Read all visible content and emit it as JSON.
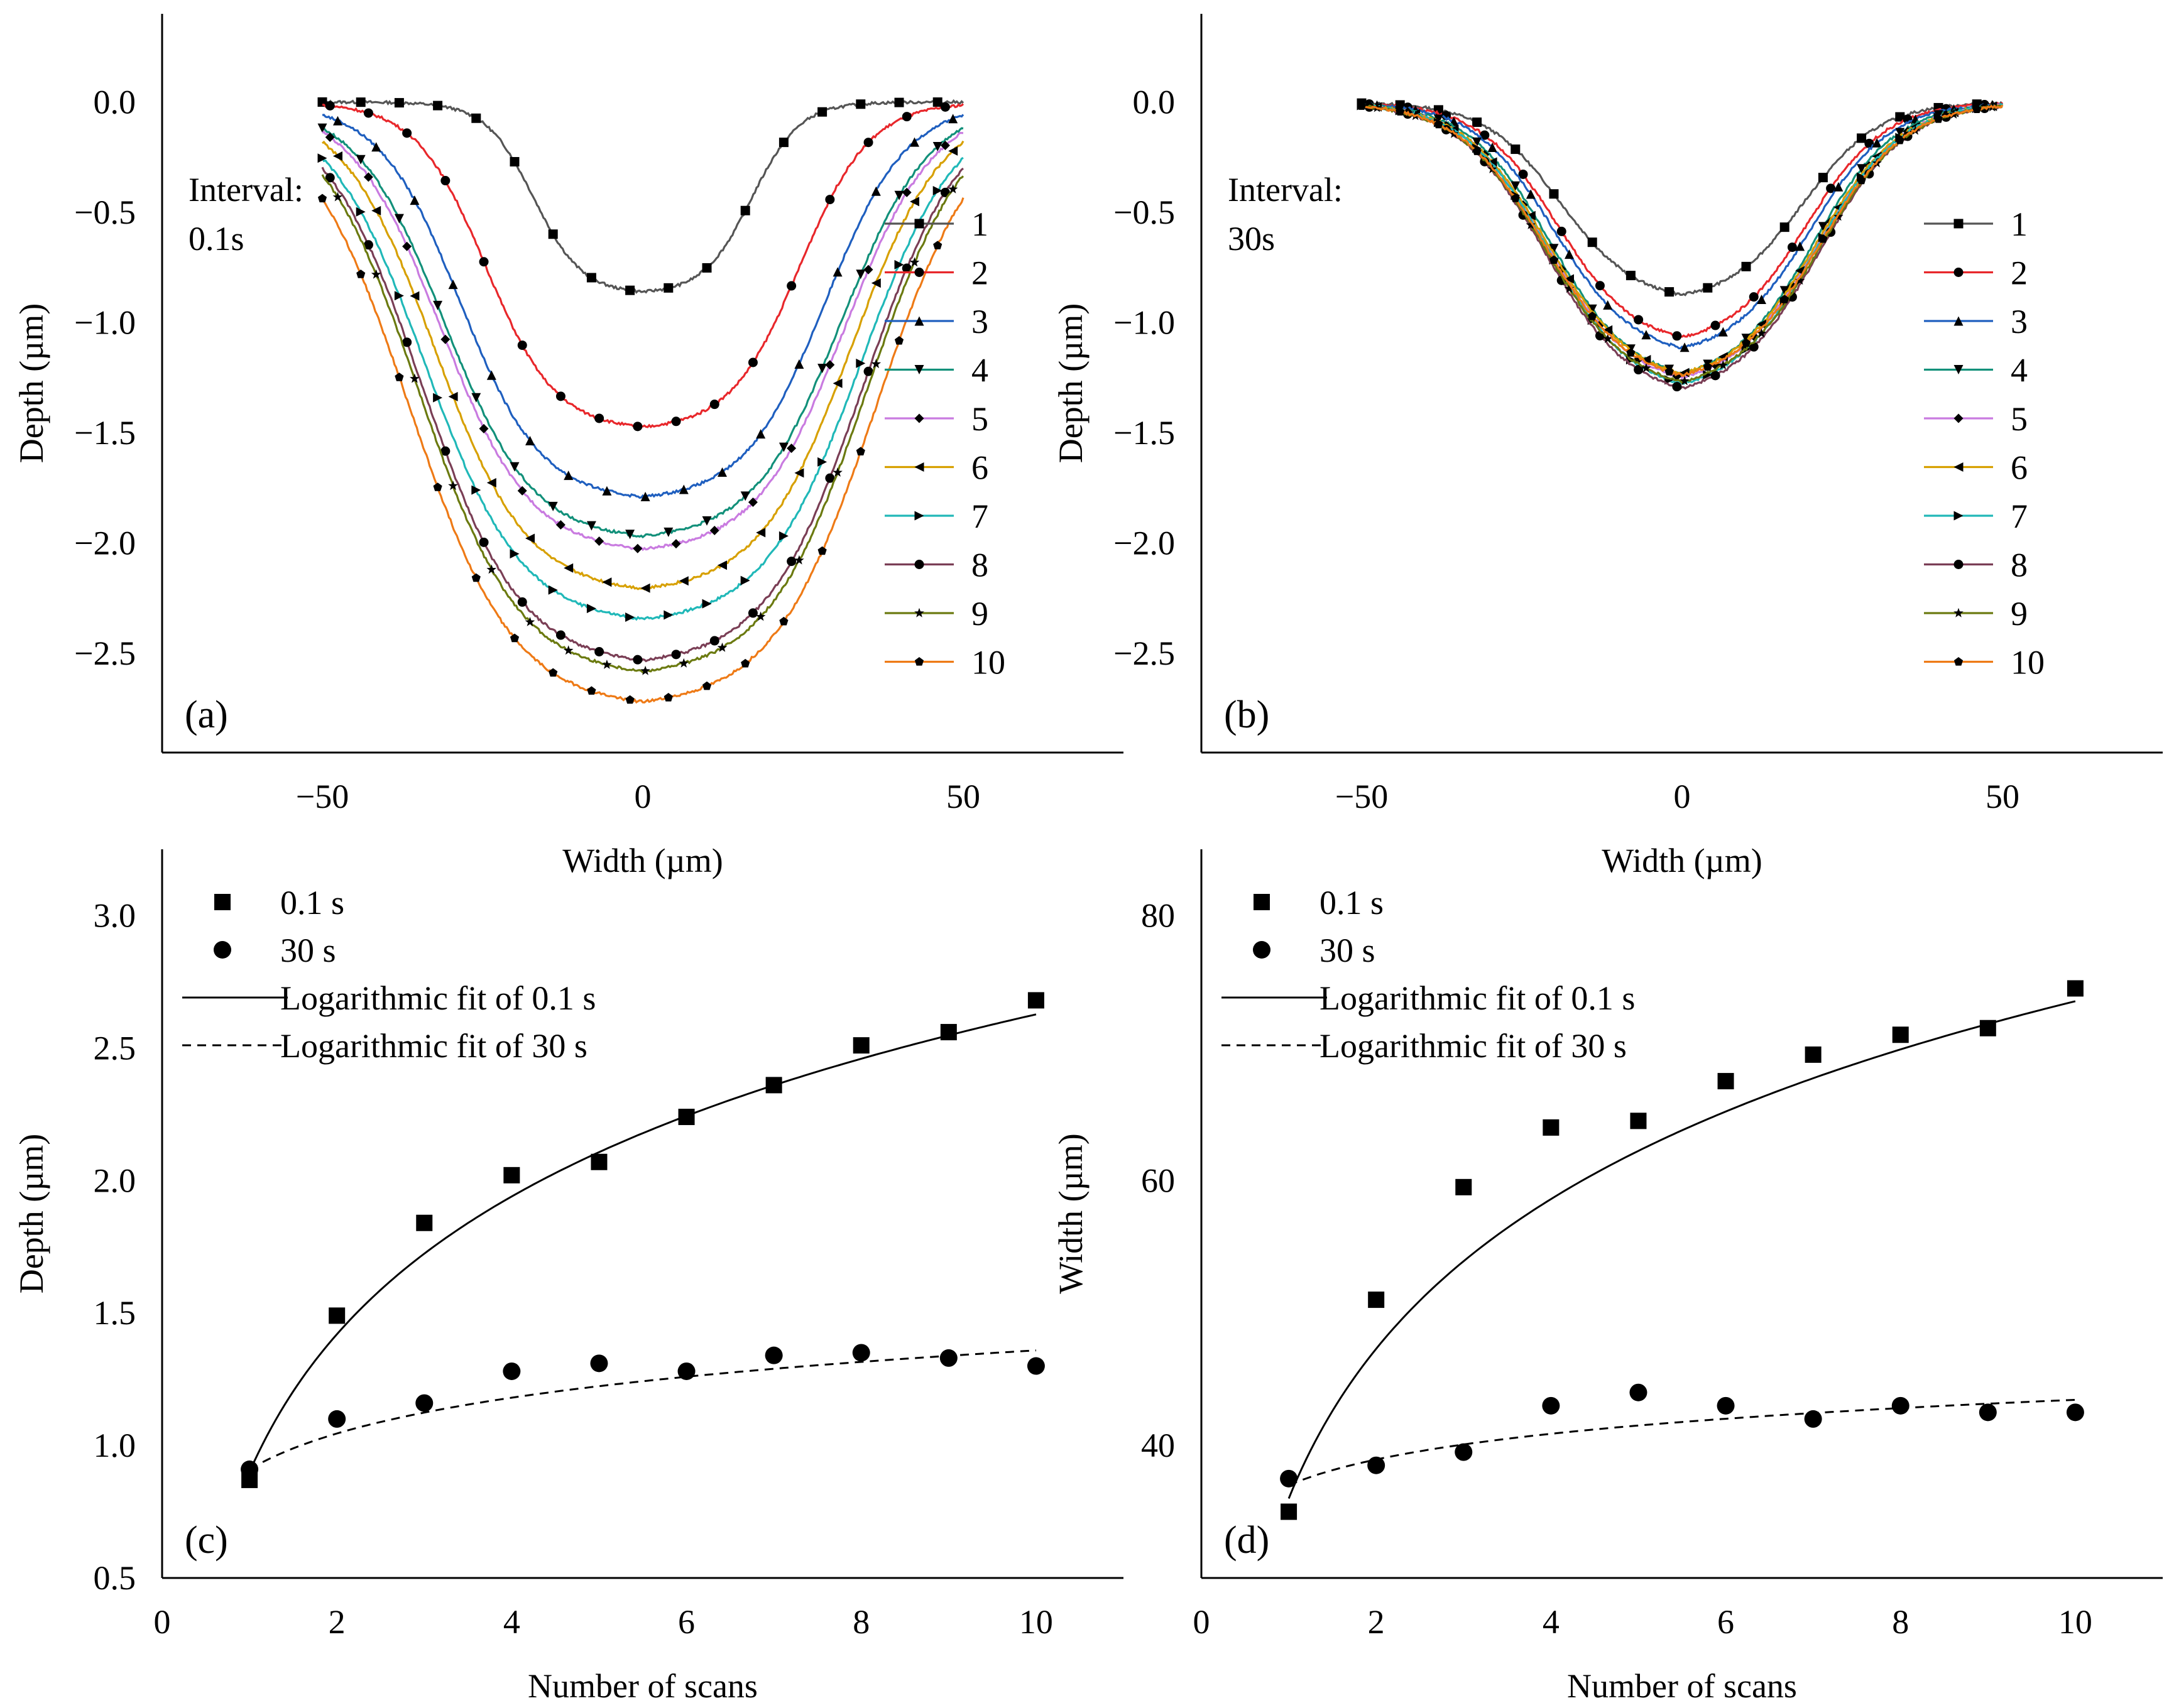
{
  "chart_data": [
    {
      "type": "line",
      "panel": "(a)",
      "annotation": [
        "Interval:",
        "0.1s"
      ],
      "xlabel": "Width (µm)",
      "ylabel": "Depth (µm)",
      "xlim": [
        -75,
        75
      ],
      "ylim": [
        -2.95,
        0.4
      ],
      "xticks": [
        "−50",
        "0",
        "50"
      ],
      "xtick_values": [
        -50,
        0,
        50
      ],
      "yticks": [
        "0.0",
        "−0.5",
        "−1.0",
        "−1.5",
        "−2.0",
        "−2.5"
      ],
      "ytick_values": [
        0.0,
        -0.5,
        -1.0,
        -1.5,
        -2.0,
        -2.5
      ],
      "legend_position": "right",
      "profile_shape": {
        "x_range": [
          -50,
          50
        ],
        "edge_sharpness": 4.5
      },
      "series": [
        {
          "name": "1",
          "color": "#555555",
          "marker": "square",
          "depth": 0.87,
          "half_width": 17.0
        },
        {
          "name": "2",
          "color": "#e8272b",
          "marker": "circle",
          "depth": 1.49,
          "half_width": 24.5
        },
        {
          "name": "3",
          "color": "#1f5fbf",
          "marker": "triangle",
          "depth": 1.81,
          "half_width": 28.5
        },
        {
          "name": "4",
          "color": "#12907a",
          "marker": "triangle-down",
          "depth": 1.99,
          "half_width": 31.0
        },
        {
          "name": "5",
          "color": "#c97be0",
          "marker": "diamond",
          "depth": 2.05,
          "half_width": 31.5
        },
        {
          "name": "6",
          "color": "#d7a000",
          "marker": "triangle-left",
          "depth": 2.23,
          "half_width": 32.5
        },
        {
          "name": "7",
          "color": "#20b8b8",
          "marker": "triangle-right",
          "depth": 2.37,
          "half_width": 34.0
        },
        {
          "name": "8",
          "color": "#7a3e55",
          "marker": "circle",
          "depth": 2.56,
          "half_width": 34.5
        },
        {
          "name": "9",
          "color": "#6b7a10",
          "marker": "star",
          "depth": 2.61,
          "half_width": 35.0
        },
        {
          "name": "10",
          "color": "#ee7a16",
          "marker": "pentagon",
          "depth": 2.75,
          "half_width": 36.5
        }
      ]
    },
    {
      "type": "line",
      "panel": "(b)",
      "annotation": [
        "Interval:",
        "30s"
      ],
      "xlabel": "Width (µm)",
      "ylabel": "Depth (µm)",
      "xlim": [
        -75,
        75
      ],
      "ylim": [
        -2.95,
        0.4
      ],
      "xticks": [
        "−50",
        "0",
        "50"
      ],
      "xtick_values": [
        -50,
        0,
        50
      ],
      "yticks": [
        "0.0",
        "−0.5",
        "−1.0",
        "−1.5",
        "−2.0",
        "−2.5"
      ],
      "ytick_values": [
        0.0,
        -0.5,
        -1.0,
        -1.5,
        -2.0,
        -2.5
      ],
      "legend_position": "right",
      "profile_shape": {
        "x_range": [
          -50,
          50
        ],
        "edge_sharpness": 3.2
      },
      "series": [
        {
          "name": "1",
          "color": "#555555",
          "marker": "square",
          "depth": 0.91,
          "half_width": 19.0
        },
        {
          "name": "2",
          "color": "#e8272b",
          "marker": "circle",
          "depth": 1.11,
          "half_width": 19.5
        },
        {
          "name": "3",
          "color": "#1f5fbf",
          "marker": "triangle",
          "depth": 1.16,
          "half_width": 20.0
        },
        {
          "name": "4",
          "color": "#12907a",
          "marker": "triangle-down",
          "depth": 1.28,
          "half_width": 20.5
        },
        {
          "name": "5",
          "color": "#c97be0",
          "marker": "diamond",
          "depth": 1.3,
          "half_width": 21.0
        },
        {
          "name": "6",
          "color": "#d7a000",
          "marker": "triangle-left",
          "depth": 1.28,
          "half_width": 21.0
        },
        {
          "name": "7",
          "color": "#20b8b8",
          "marker": "triangle-right",
          "depth": 1.33,
          "half_width": 21.0
        },
        {
          "name": "8",
          "color": "#7a3e55",
          "marker": "circle",
          "depth": 1.35,
          "half_width": 21.5
        },
        {
          "name": "9",
          "color": "#6b7a10",
          "marker": "star",
          "depth": 1.32,
          "half_width": 21.5
        },
        {
          "name": "10",
          "color": "#ee7a16",
          "marker": "pentagon",
          "depth": 1.29,
          "half_width": 21.5
        }
      ]
    },
    {
      "type": "scatter",
      "panel": "(c)",
      "xlabel": "Number of scans",
      "ylabel": "Depth (µm)",
      "xlim": [
        0,
        11
      ],
      "ylim": [
        0.5,
        3.25
      ],
      "xticks": [
        "0",
        "2",
        "4",
        "6",
        "8",
        "10"
      ],
      "xtick_values": [
        0,
        2,
        4,
        6,
        8,
        10
      ],
      "yticks": [
        "0.5",
        "1.0",
        "1.5",
        "2.0",
        "2.5",
        "3.0"
      ],
      "ytick_values": [
        0.5,
        1.0,
        1.5,
        2.0,
        2.5,
        3.0
      ],
      "legend_position": "top-left",
      "legend": [
        "0.1 s",
        "30 s",
        "Logarithmic fit of 0.1 s",
        "Logarithmic fit of 30 s"
      ],
      "series": [
        {
          "name": "0.1 s",
          "marker": "square",
          "x": [
            1,
            2,
            3,
            4,
            5,
            6,
            7,
            8,
            9,
            10
          ],
          "y": [
            0.87,
            1.49,
            1.84,
            2.02,
            2.07,
            2.24,
            2.36,
            2.51,
            2.56,
            2.68
          ]
        },
        {
          "name": "30 s",
          "marker": "circle",
          "x": [
            1,
            2,
            3,
            4,
            5,
            6,
            7,
            8,
            9,
            10
          ],
          "y": [
            0.91,
            1.1,
            1.16,
            1.28,
            1.31,
            1.28,
            1.34,
            1.35,
            1.33,
            1.3
          ]
        }
      ],
      "fits": [
        {
          "name": "Logarithmic fit of 0.1 s",
          "style": "solid",
          "a": 0.9,
          "b": 0.75
        },
        {
          "name": "Logarithmic fit of 30 s",
          "style": "dashed",
          "a": 0.91,
          "b": 0.195
        }
      ]
    },
    {
      "type": "scatter",
      "panel": "(d)",
      "xlabel": "Number of scans",
      "ylabel": "Width (µm)",
      "xlim": [
        0,
        11
      ],
      "ylim": [
        30,
        85
      ],
      "xticks": [
        "0",
        "2",
        "4",
        "6",
        "8",
        "10"
      ],
      "xtick_values": [
        0,
        2,
        4,
        6,
        8,
        10
      ],
      "yticks": [
        "40",
        "60",
        "80"
      ],
      "ytick_values": [
        40,
        60,
        80
      ],
      "legend_position": "top-left",
      "legend": [
        "0.1 s",
        "30 s",
        "Logarithmic fit of 0.1 s",
        "Logarithmic fit of 30 s"
      ],
      "series": [
        {
          "name": "0.1 s",
          "marker": "square",
          "x": [
            1,
            2,
            3,
            4,
            5,
            6,
            7,
            8,
            9,
            10
          ],
          "y": [
            35.0,
            51.0,
            59.5,
            64.0,
            64.5,
            67.5,
            69.5,
            71.0,
            71.5,
            74.5
          ]
        },
        {
          "name": "30 s",
          "marker": "circle",
          "x": [
            1,
            2,
            3,
            4,
            5,
            6,
            7,
            8,
            9,
            10
          ],
          "y": [
            37.5,
            38.5,
            39.5,
            43.0,
            44.0,
            43.0,
            42.0,
            43.0,
            42.5,
            42.5
          ]
        }
      ],
      "fits": [
        {
          "name": "Logarithmic fit of 0.1 s",
          "style": "solid",
          "a": 36.0,
          "b": 16.3
        },
        {
          "name": "Logarithmic fit of 30 s",
          "style": "dashed",
          "a": 37.0,
          "b": 2.8
        }
      ]
    }
  ]
}
